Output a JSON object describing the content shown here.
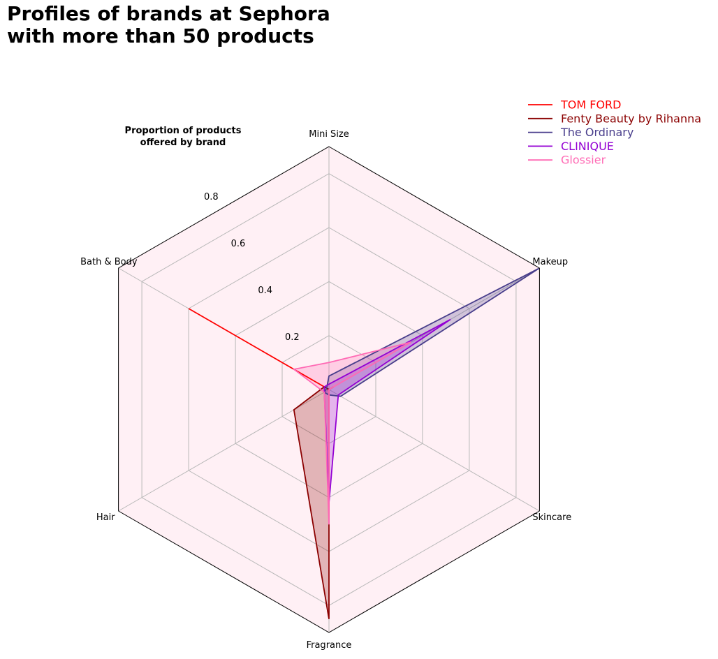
{
  "title": "Profiles of brands at Sephora\nwith more than 50 products",
  "chart_data": {
    "type": "radar",
    "subtitle": [
      "Proportion of products",
      "offered by brand"
    ],
    "axes": [
      "Mini Size",
      "Makeup",
      "Skincare",
      "Fragrance",
      "Hair",
      "Bath & Body"
    ],
    "r_ticks": [
      "0.2",
      "0.4",
      "0.6",
      "0.8"
    ],
    "r_tick_values": [
      0.2,
      0.4,
      0.6,
      0.8
    ],
    "rlim": [
      0,
      0.9
    ],
    "grid": true,
    "legend_position": "top-right",
    "series": [
      {
        "name": "TOM FORD",
        "color": "#ff0000",
        "values": [
          0.0,
          0.0,
          0.0,
          0.0,
          0.0,
          0.6
        ],
        "filled": false
      },
      {
        "name": "Fenty Beauty by Rihanna",
        "color": "#8b0000",
        "values": [
          0.0,
          0.02,
          0.0,
          0.85,
          0.15,
          0.02
        ],
        "filled": true
      },
      {
        "name": "The Ordinary",
        "color": "#483d8b",
        "values": [
          0.05,
          0.9,
          0.05,
          0.02,
          0.02,
          0.01
        ],
        "filled": true
      },
      {
        "name": "CLINIQUE",
        "color": "#9400d3",
        "values": [
          0.02,
          0.52,
          0.04,
          0.42,
          0.02,
          0.02
        ],
        "filled": true
      },
      {
        "name": "Glossier",
        "color": "#ff69b4",
        "values": [
          0.1,
          0.35,
          0.0,
          0.5,
          0.02,
          0.15
        ],
        "filled": true
      }
    ],
    "background_color": "#fff0f5"
  }
}
